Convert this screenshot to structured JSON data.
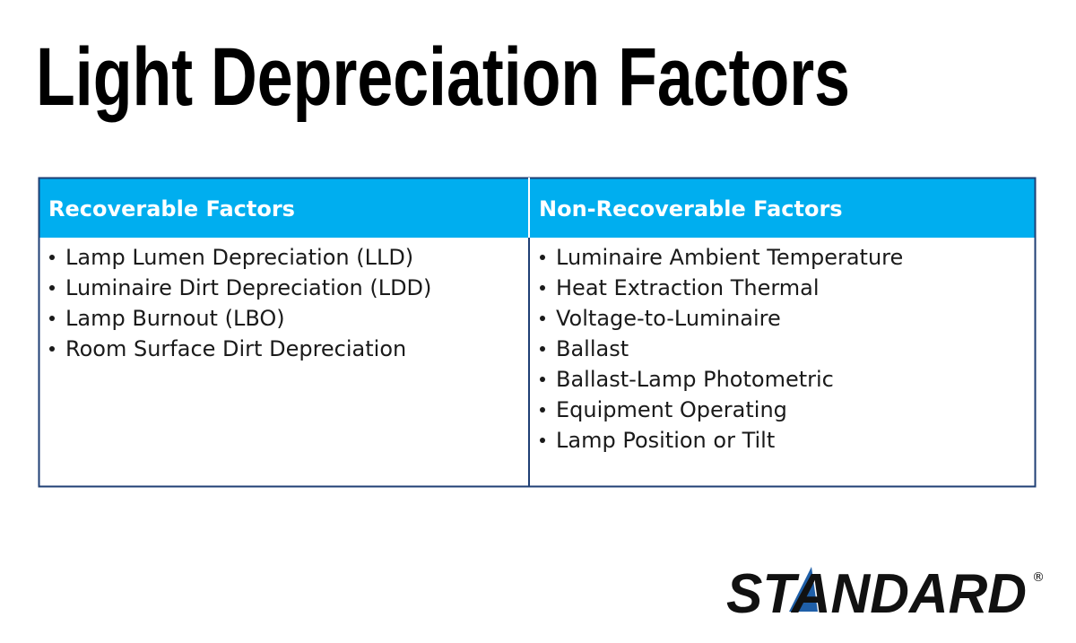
{
  "header": {
    "title": "Light Depreciation Factors"
  },
  "table": {
    "columns": [
      {
        "heading": "Recoverable Factors",
        "items": [
          "Lamp Lumen Depreciation (LLD)",
          "Luminaire Dirt Depreciation (LDD)",
          "Lamp Burnout (LBO)",
          "Room Surface Dirt Depreciation"
        ]
      },
      {
        "heading": "Non-Recoverable Factors",
        "items": [
          "Luminaire Ambient Temperature",
          "Heat Extraction Thermal",
          "Voltage-to-Luminaire",
          "Ballast",
          "Ballast-Lamp Photometric",
          "Equipment Operating",
          "Lamp Position or Tilt"
        ]
      }
    ]
  },
  "logo": {
    "text": "STANDARD",
    "mark": "®"
  }
}
